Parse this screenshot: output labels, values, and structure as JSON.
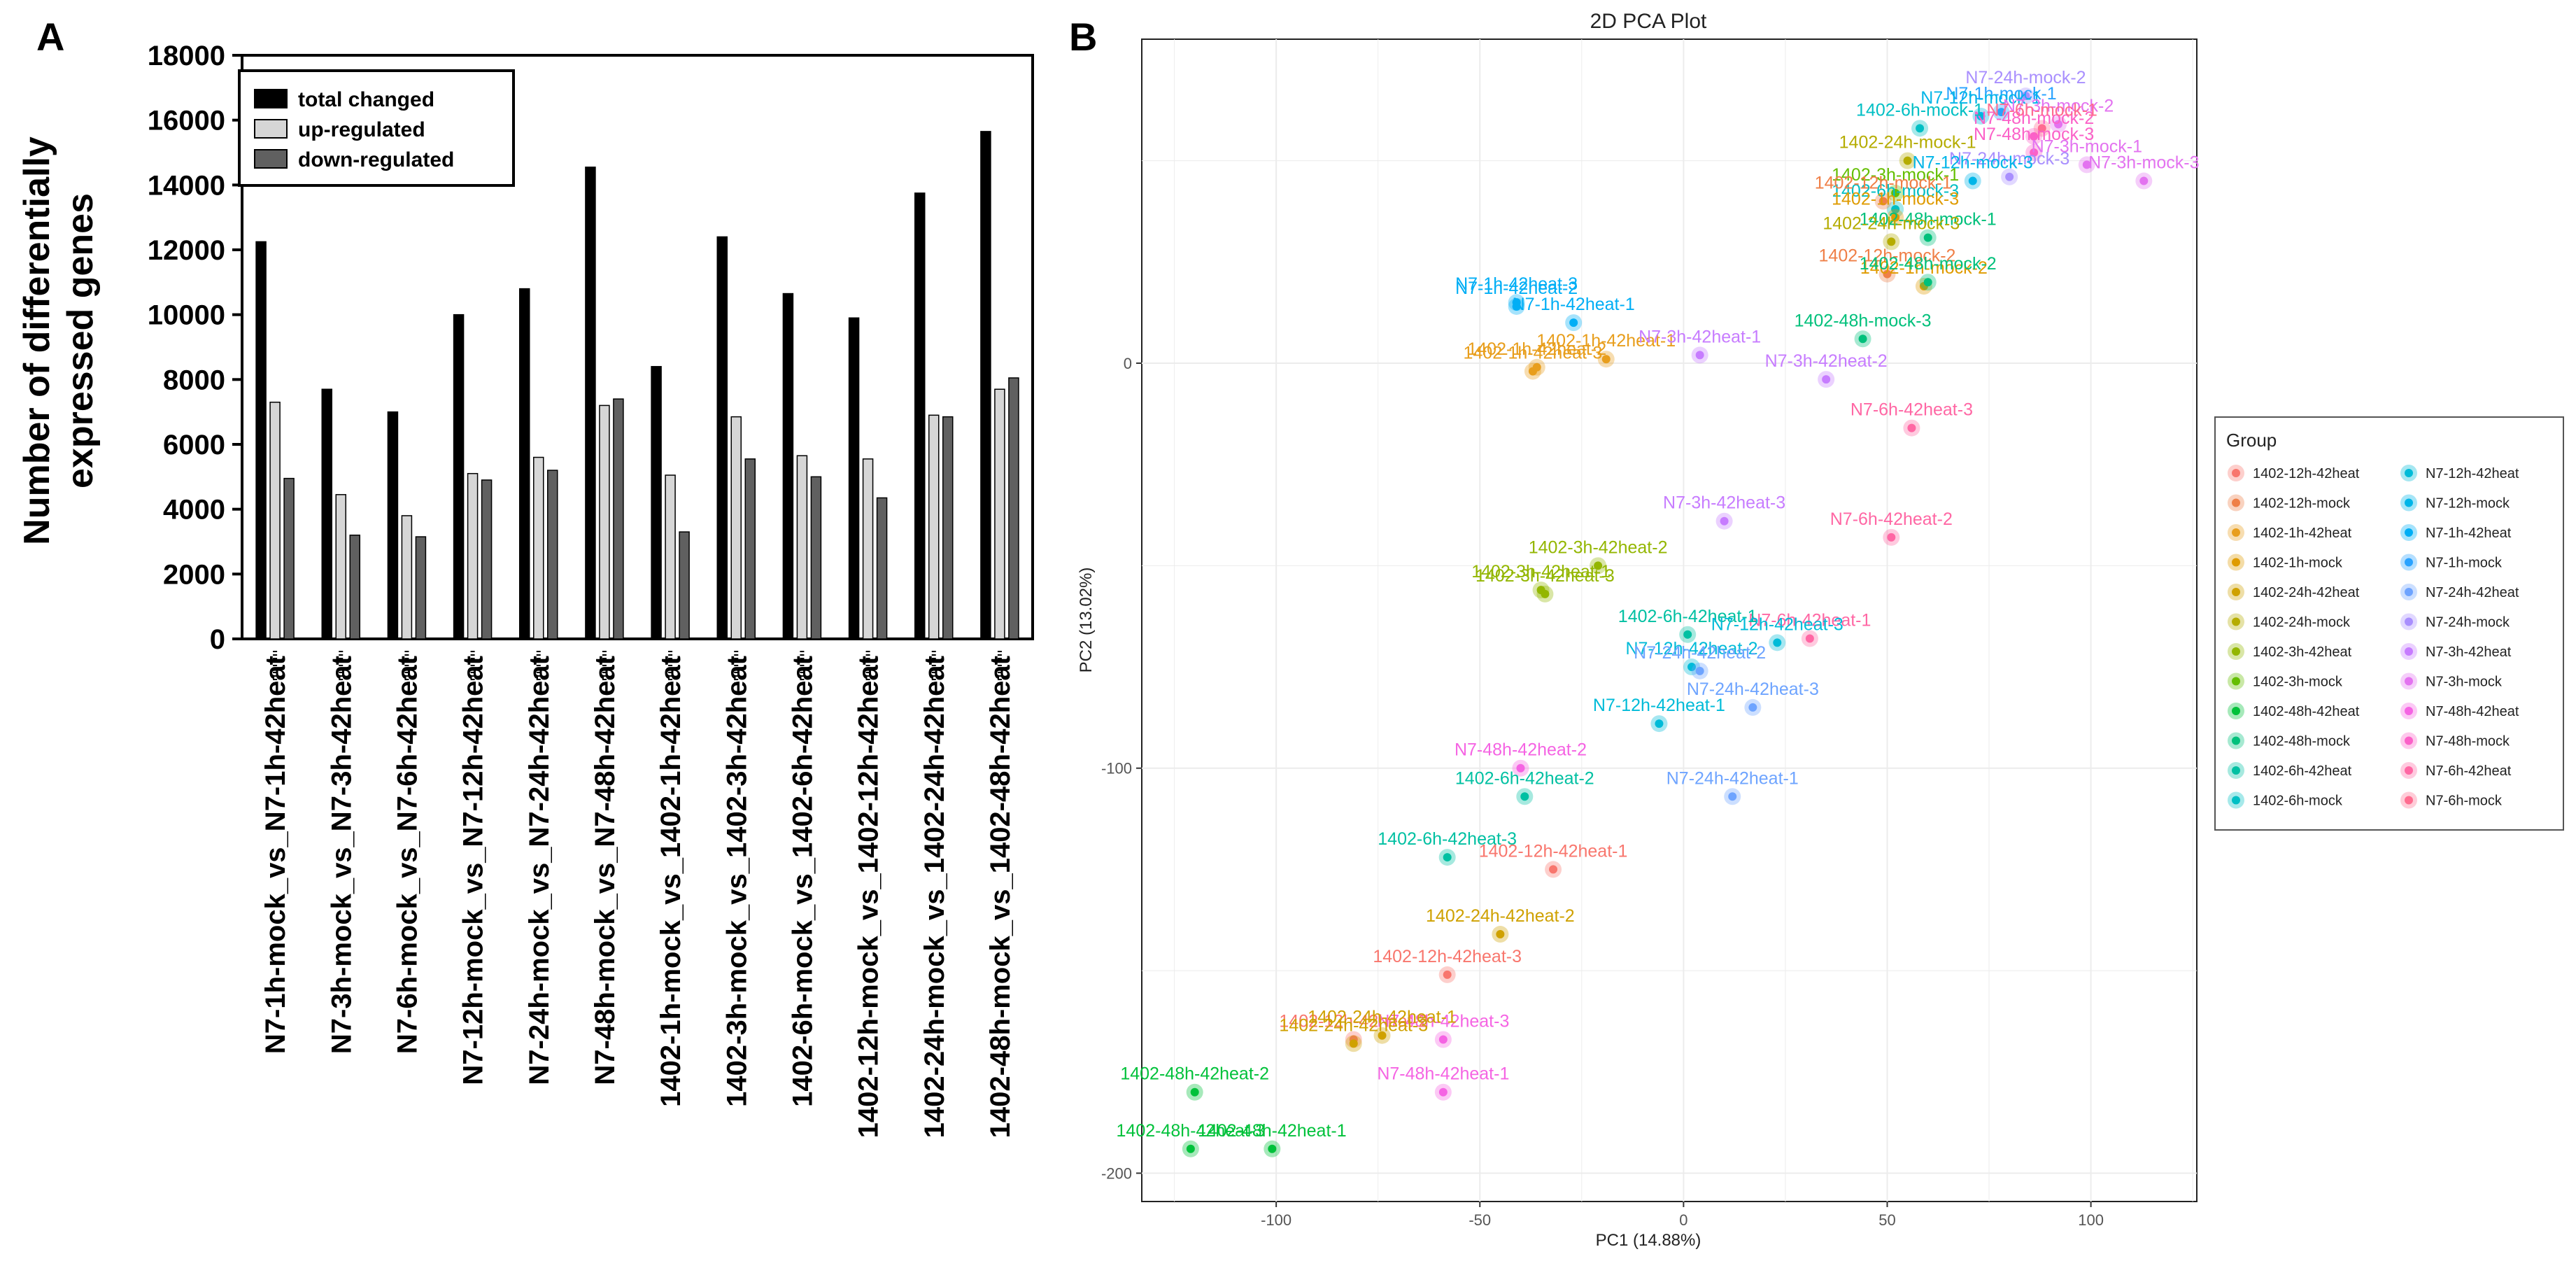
{
  "panel_a": {
    "letter": "A"
  },
  "panel_b": {
    "letter": "B"
  },
  "chart_data": [
    {
      "type": "bar",
      "title": "",
      "ylabel_line1": "Number of differentially",
      "ylabel_line2": "expressed genes",
      "xlabel": "",
      "ylim": [
        0,
        18000
      ],
      "yticks": [
        0,
        2000,
        4000,
        6000,
        8000,
        10000,
        12000,
        14000,
        16000,
        18000
      ],
      "legend_position": "top-left",
      "categories": [
        "N7-1h-mock_vs_N7-1h-42heat",
        "N7-3h-mock_vs_N7-3h-42heat",
        "N7-6h-mock_vs_N7-6h-42heat",
        "N7-12h-mock_vs_N7-12h-42heat",
        "N7-24h-mock_vs_N7-24h-42heat",
        "N7-48h-mock_vs_N7-48h-42heat",
        "1402-1h-mock_vs_1402-1h-42heat",
        "1402-3h-mock_vs_1402-3h-42heat",
        "1402-6h-mock_vs_1402-6h-42heat",
        "1402-12h-mock_vs_1402-12h-42heat",
        "1402-24h-mock_vs_1402-24h-42heat",
        "1402-48h-mock_vs_1402-48h-42heat"
      ],
      "series": [
        {
          "name": "total changed",
          "color": "#000000",
          "values": [
            12250,
            7700,
            7000,
            10000,
            10800,
            14550,
            8400,
            12400,
            10650,
            9900,
            13750,
            15650
          ]
        },
        {
          "name": "up-regulated",
          "color": "#d6d6d6",
          "values": [
            7300,
            4450,
            3800,
            5100,
            5600,
            7200,
            5050,
            6850,
            5650,
            5550,
            6900,
            7700
          ]
        },
        {
          "name": "down-regulated",
          "color": "#606060",
          "values": [
            4950,
            3200,
            3150,
            4900,
            5200,
            7400,
            3300,
            5550,
            5000,
            4350,
            6850,
            8050
          ]
        }
      ]
    },
    {
      "type": "scatter",
      "title": "2D PCA Plot",
      "xlabel": "PC1 (14.88%)",
      "ylabel": "PC2 (13.02%)",
      "xlim": [
        -133,
        126
      ],
      "ylim": [
        -207,
        80
      ],
      "xticks": [
        -100,
        -50,
        0,
        50,
        100
      ],
      "yticks": [
        -200,
        -100,
        0
      ],
      "grid": true,
      "legend_title": "Group",
      "legend_position": "right",
      "groups": [
        {
          "name": "1402-12h-42heat",
          "color": "#f8766d"
        },
        {
          "name": "1402-12h-mock",
          "color": "#ef7f47"
        },
        {
          "name": "1402-1h-42heat",
          "color": "#e89e1c"
        },
        {
          "name": "1402-1h-mock",
          "color": "#df9b00"
        },
        {
          "name": "1402-24h-42heat",
          "color": "#cfa100"
        },
        {
          "name": "1402-24h-mock",
          "color": "#b5ac00"
        },
        {
          "name": "1402-3h-42heat",
          "color": "#93b600"
        },
        {
          "name": "1402-3h-mock",
          "color": "#64be00"
        },
        {
          "name": "1402-48h-42heat",
          "color": "#00c13a"
        },
        {
          "name": "1402-48h-mock",
          "color": "#00c07b"
        },
        {
          "name": "1402-6h-42heat",
          "color": "#00c0a2"
        },
        {
          "name": "1402-6h-mock",
          "color": "#00bfc4"
        },
        {
          "name": "N7-12h-42heat",
          "color": "#00bbd8"
        },
        {
          "name": "N7-12h-mock",
          "color": "#00b5e8"
        },
        {
          "name": "N7-1h-42heat",
          "color": "#00aef5"
        },
        {
          "name": "N7-1h-mock",
          "color": "#2aa3ff"
        },
        {
          "name": "N7-24h-42heat",
          "color": "#6ea4ff"
        },
        {
          "name": "N7-24h-mock",
          "color": "#a98ffe"
        },
        {
          "name": "N7-3h-42heat",
          "color": "#c77cff"
        },
        {
          "name": "N7-3h-mock",
          "color": "#e373f0"
        },
        {
          "name": "N7-48h-42heat",
          "color": "#f564e3"
        },
        {
          "name": "N7-48h-mock",
          "color": "#fb61c8"
        },
        {
          "name": "N7-6h-42heat",
          "color": "#ff67a4"
        },
        {
          "name": "N7-6h-mock",
          "color": "#ff6c90"
        }
      ],
      "points": [
        {
          "label": "N7-1h-42heat-3",
          "group": "N7-1h-42heat",
          "x": -41,
          "y": 15
        },
        {
          "label": "N7-1h-42heat-2",
          "group": "N7-1h-42heat",
          "x": -41,
          "y": 14
        },
        {
          "label": "N7-1h-42heat-1",
          "group": "N7-1h-42heat",
          "x": -27,
          "y": 10
        },
        {
          "label": "1402-1h-42heat-1",
          "group": "1402-1h-42heat",
          "x": -19,
          "y": 1
        },
        {
          "label": "1402-1h-42heat-2",
          "group": "1402-1h-42heat",
          "x": -36,
          "y": -1
        },
        {
          "label": "1402-1h-42heat-3",
          "group": "1402-1h-42heat",
          "x": -37,
          "y": -2
        },
        {
          "label": "N7-3h-42heat-1",
          "group": "N7-3h-42heat",
          "x": 4,
          "y": 2
        },
        {
          "label": "N7-3h-42heat-2",
          "group": "N7-3h-42heat",
          "x": 35,
          "y": -4
        },
        {
          "label": "N7-3h-42heat-3",
          "group": "N7-3h-42heat",
          "x": 10,
          "y": -39
        },
        {
          "label": "N7-6h-42heat-3",
          "group": "N7-6h-42heat",
          "x": 56,
          "y": -16
        },
        {
          "label": "N7-6h-42heat-2",
          "group": "N7-6h-42heat",
          "x": 51,
          "y": -43
        },
        {
          "label": "N7-6h-42heat-1",
          "group": "N7-6h-42heat",
          "x": 31,
          "y": -68
        },
        {
          "label": "1402-3h-42heat-2",
          "group": "1402-3h-42heat",
          "x": -21,
          "y": -50
        },
        {
          "label": "1402-3h-42heat-1",
          "group": "1402-3h-42heat",
          "x": -35,
          "y": -56
        },
        {
          "label": "1402-3h-42heat-3",
          "group": "1402-3h-42heat",
          "x": -34,
          "y": -57
        },
        {
          "label": "1402-6h-42heat-1",
          "group": "1402-6h-42heat",
          "x": 1,
          "y": -67
        },
        {
          "label": "1402-6h-42heat-2",
          "group": "1402-6h-42heat",
          "x": -39,
          "y": -107
        },
        {
          "label": "1402-6h-42heat-3",
          "group": "1402-6h-42heat",
          "x": -58,
          "y": -122
        },
        {
          "label": "N7-12h-42heat-3",
          "group": "N7-12h-42heat",
          "x": 23,
          "y": -69
        },
        {
          "label": "N7-12h-42heat-2",
          "group": "N7-12h-42heat",
          "x": 2,
          "y": -75
        },
        {
          "label": "N7-12h-42heat-1",
          "group": "N7-12h-42heat",
          "x": -6,
          "y": -89
        },
        {
          "label": "N7-24h-42heat-2",
          "group": "N7-24h-42heat",
          "x": 4,
          "y": -76
        },
        {
          "label": "N7-24h-42heat-3",
          "group": "N7-24h-42heat",
          "x": 17,
          "y": -85
        },
        {
          "label": "N7-24h-42heat-1",
          "group": "N7-24h-42heat",
          "x": 12,
          "y": -107
        },
        {
          "label": "N7-48h-42heat-2",
          "group": "N7-48h-42heat",
          "x": -40,
          "y": -100
        },
        {
          "label": "N7-48h-42heat-3",
          "group": "N7-48h-42heat",
          "x": -59,
          "y": -167
        },
        {
          "label": "N7-48h-42heat-1",
          "group": "N7-48h-42heat",
          "x": -59,
          "y": -180
        },
        {
          "label": "1402-12h-42heat-1",
          "group": "1402-12h-42heat",
          "x": -32,
          "y": -125
        },
        {
          "label": "1402-12h-42heat-3",
          "group": "1402-12h-42heat",
          "x": -58,
          "y": -151
        },
        {
          "label": "1402-12h-42heat-2",
          "group": "1402-12h-42heat",
          "x": -81,
          "y": -167
        },
        {
          "label": "1402-24h-42heat-2",
          "group": "1402-24h-42heat",
          "x": -45,
          "y": -141
        },
        {
          "label": "1402-24h-42heat-1",
          "group": "1402-24h-42heat",
          "x": -74,
          "y": -166
        },
        {
          "label": "1402-24h-42heat-3",
          "group": "1402-24h-42heat",
          "x": -81,
          "y": -168
        },
        {
          "label": "1402-48h-42heat-2",
          "group": "1402-48h-42heat",
          "x": -120,
          "y": -180
        },
        {
          "label": "1402-48h-42heat-1",
          "group": "1402-48h-42heat",
          "x": -101,
          "y": -194
        },
        {
          "label": "1402-48h-42heat-3",
          "group": "1402-48h-42heat",
          "x": -121,
          "y": -194
        },
        {
          "label": "1402-48h-mock-3",
          "group": "1402-48h-mock",
          "x": 44,
          "y": 6
        },
        {
          "label": "N7-24h-mock-2",
          "group": "N7-24h-mock",
          "x": 84,
          "y": 66
        },
        {
          "label": "N7-1h-mock-1",
          "group": "N7-1h-mock",
          "x": 78,
          "y": 62
        },
        {
          "label": "N7-12h-mock-1",
          "group": "N7-12h-mock",
          "x": 73,
          "y": 61
        },
        {
          "label": "N7-3h-mock-2",
          "group": "N7-3h-mock",
          "x": 92,
          "y": 59
        },
        {
          "label": "N7-48h-mock-2",
          "group": "N7-48h-mock",
          "x": 86,
          "y": 56
        },
        {
          "label": "N7-6h-mock-1",
          "group": "N7-6h-mock",
          "x": 88,
          "y": 58
        },
        {
          "label": "1402-6h-mock-1",
          "group": "1402-6h-mock",
          "x": 58,
          "y": 58
        },
        {
          "label": "N7-48h-mock-3",
          "group": "N7-48h-mock",
          "x": 86,
          "y": 52
        },
        {
          "label": "1402-24h-mock-1",
          "group": "1402-24h-mock",
          "x": 55,
          "y": 50
        },
        {
          "label": "N7-3h-mock-1",
          "group": "N7-3h-mock",
          "x": 99,
          "y": 49
        },
        {
          "label": "N7-24h-mock-3",
          "group": "N7-24h-mock",
          "x": 80,
          "y": 46
        },
        {
          "label": "N7-12h-mock-3",
          "group": "N7-12h-mock",
          "x": 71,
          "y": 45
        },
        {
          "label": "N7-3h-mock-3",
          "group": "N7-3h-mock",
          "x": 113,
          "y": 45
        },
        {
          "label": "1402-3h-mock-1",
          "group": "1402-3h-mock",
          "x": 52,
          "y": 42
        },
        {
          "label": "1402-6h-mock-3",
          "group": "1402-6h-mock",
          "x": 52,
          "y": 38
        },
        {
          "label": "1402-12h-mock-1",
          "group": "1402-12h-mock",
          "x": 49,
          "y": 40
        },
        {
          "label": "1402-1h-mock-3",
          "group": "1402-1h-mock",
          "x": 52,
          "y": 36
        },
        {
          "label": "1402-48h-mock-1",
          "group": "1402-48h-mock",
          "x": 60,
          "y": 31
        },
        {
          "label": "1402-24h-mock-3",
          "group": "1402-24h-mock",
          "x": 51,
          "y": 30
        },
        {
          "label": "1402-12h-mock-2",
          "group": "1402-12h-mock",
          "x": 50,
          "y": 22
        },
        {
          "label": "1402-1h-mock-2",
          "group": "1402-1h-mock",
          "x": 59,
          "y": 19
        },
        {
          "label": "1402-48h-mock-2",
          "group": "1402-48h-mock",
          "x": 60,
          "y": 20
        }
      ]
    }
  ]
}
